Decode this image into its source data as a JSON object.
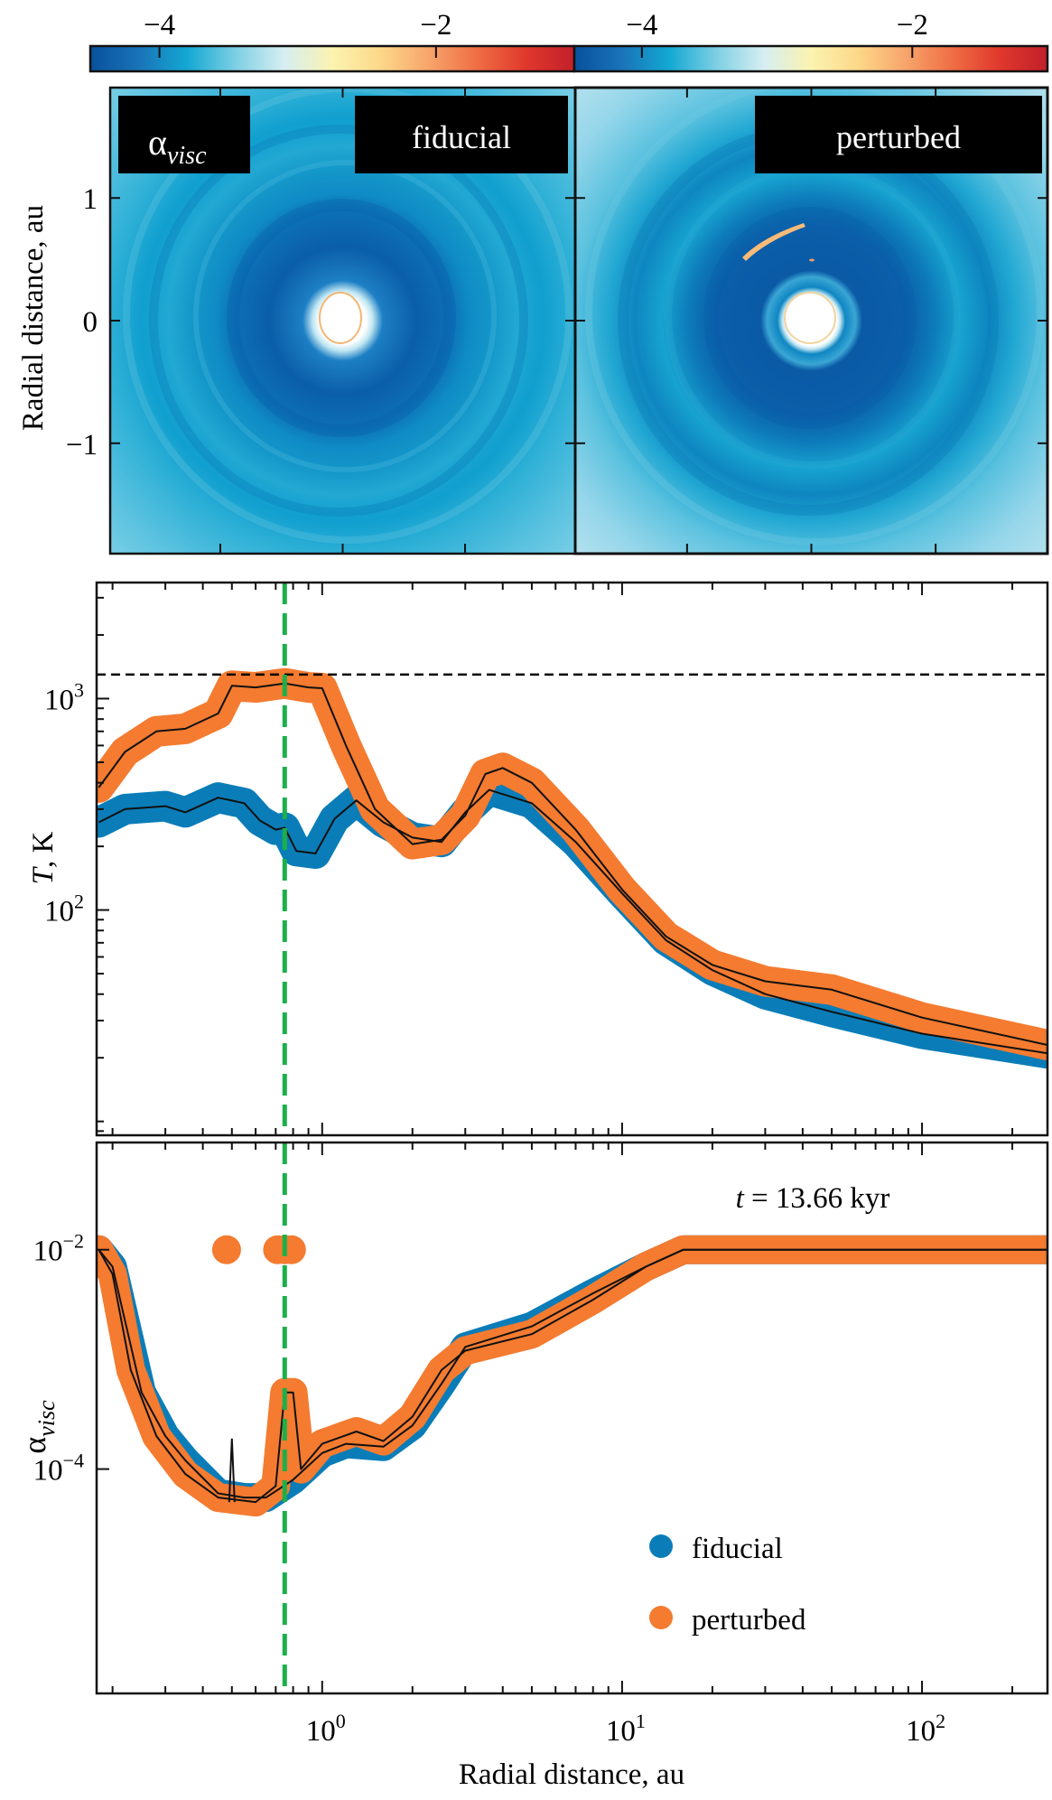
{
  "colorbars": [
    {
      "name": "left",
      "ticks": [
        {
          "value": -4,
          "label": "−4"
        },
        {
          "value": -2,
          "label": "−2"
        }
      ],
      "range": [
        -4.5,
        -1.0
      ]
    },
    {
      "name": "right",
      "ticks": [
        {
          "value": -4,
          "label": "−4"
        },
        {
          "value": -2,
          "label": "−2"
        }
      ],
      "range": [
        -4.5,
        -1.0
      ]
    }
  ],
  "colormap": [
    "#08519c",
    "#1a73b8",
    "#13a8d2",
    "#7dcfe3",
    "#d6eef2",
    "#fbf3b0",
    "#fdd889",
    "#f7a46b",
    "#ef6d44",
    "#e0382c",
    "#c2202a"
  ],
  "maps": {
    "ylabel": "Radial distance, au",
    "yticks": [
      {
        "value": 1,
        "label": "1"
      },
      {
        "value": 0,
        "label": "0"
      },
      {
        "value": -1,
        "label": "−1"
      }
    ],
    "range": [
      -1.9,
      1.9
    ],
    "quantity_label": "α",
    "quantity_sub": "visc",
    "panels": [
      {
        "label": "fiducial"
      },
      {
        "label": "perturbed"
      }
    ]
  },
  "chart_data": [
    {
      "type": "line",
      "panel": "temperature",
      "xlabel": "Radial distance, au",
      "ylabel_italic": "T",
      "ylabel_rest": ", K",
      "xscale": "log",
      "yscale": "log",
      "xlim": [
        0.177,
        262
      ],
      "ylim": [
        8.6,
        3540
      ],
      "yticks": [
        {
          "value": 100,
          "base": "10",
          "exp": "2"
        },
        {
          "value": 1000,
          "base": "10",
          "exp": "3"
        }
      ],
      "hline": {
        "value": 1300,
        "style": "dashed",
        "color": "#000000"
      },
      "vline": {
        "value": 0.75,
        "style": "dashed",
        "color": "#1ab04a"
      },
      "series": [
        {
          "name": "fiducial",
          "color": "#0a7db8",
          "x": [
            0.18,
            0.22,
            0.3,
            0.35,
            0.45,
            0.55,
            0.62,
            0.7,
            0.75,
            0.82,
            0.95,
            1.1,
            1.3,
            1.6,
            2.0,
            2.5,
            3.0,
            3.6,
            5,
            7,
            10,
            14,
            20,
            30,
            50,
            100,
            262
          ],
          "y": [
            260,
            300,
            310,
            290,
            340,
            320,
            265,
            240,
            245,
            190,
            185,
            270,
            330,
            260,
            220,
            210,
            290,
            370,
            320,
            210,
            120,
            72,
            52,
            40,
            33,
            26,
            21
          ]
        },
        {
          "name": "perturbed",
          "color": "#f47b30",
          "x": [
            0.18,
            0.22,
            0.28,
            0.35,
            0.45,
            0.5,
            0.6,
            0.75,
            0.9,
            1.0,
            1.2,
            1.5,
            2.0,
            2.5,
            3.0,
            3.5,
            4.0,
            5.0,
            7,
            10,
            14,
            20,
            30,
            50,
            100,
            262
          ],
          "y": [
            380,
            560,
            700,
            720,
            850,
            1150,
            1130,
            1180,
            1130,
            1120,
            600,
            300,
            205,
            215,
            280,
            440,
            470,
            400,
            240,
            125,
            75,
            55,
            46,
            42,
            31,
            23
          ]
        }
      ]
    },
    {
      "type": "line",
      "panel": "alpha",
      "xlabel": "Radial distance, au",
      "ylabel": "α",
      "ylabel_sub": "visc",
      "xscale": "log",
      "yscale": "log",
      "xlim": [
        0.177,
        262
      ],
      "ylim": [
        9e-07,
        0.095
      ],
      "xticks": [
        {
          "value": 1,
          "base": "10",
          "exp": "0"
        },
        {
          "value": 10,
          "base": "10",
          "exp": "1"
        },
        {
          "value": 100,
          "base": "10",
          "exp": "2"
        }
      ],
      "yticks": [
        {
          "value": 0.01,
          "base": "10",
          "exp": "−2"
        },
        {
          "value": 0.0001,
          "base": "10",
          "exp": "−4"
        }
      ],
      "vline": {
        "value": 0.75,
        "style": "dashed",
        "color": "#1ab04a"
      },
      "annotation": {
        "italic": "t",
        "rest": " = 13.66 kyr"
      },
      "legend": {
        "position": "lower-right",
        "entries": [
          {
            "label": "fiducial",
            "color": "#0a7db8"
          },
          {
            "label": "perturbed",
            "color": "#f47b30"
          }
        ]
      },
      "series": [
        {
          "name": "fiducial",
          "color": "#0a7db8",
          "x": [
            0.18,
            0.2,
            0.25,
            0.3,
            0.35,
            0.45,
            0.55,
            0.65,
            0.8,
            1.0,
            1.2,
            1.6,
            2.0,
            2.5,
            3.0,
            5,
            8,
            12,
            16,
            262
          ],
          "y": [
            0.01,
            0.007,
            0.0005,
            0.0002,
            0.00012,
            6e-05,
            5.5e-05,
            5.5e-05,
            8e-05,
            0.00014,
            0.00017,
            0.00016,
            0.00025,
            0.0006,
            0.0013,
            0.002,
            0.004,
            0.007,
            0.01,
            0.01
          ]
        },
        {
          "name": "perturbed",
          "color": "#f47b30",
          "x": [
            0.18,
            0.2,
            0.23,
            0.28,
            0.35,
            0.45,
            0.6,
            0.7,
            0.75,
            0.8,
            0.85,
            1.0,
            1.3,
            1.6,
            2.0,
            2.5,
            3.0,
            5,
            8,
            12,
            16,
            262
          ],
          "y": [
            0.01,
            0.006,
            0.0008,
            0.0002,
            9e-05,
            5.5e-05,
            5e-05,
            7e-05,
            0.0005,
            0.0005,
            0.0001,
            0.00017,
            0.00022,
            0.00018,
            0.0003,
            0.0008,
            0.0012,
            0.0017,
            0.0035,
            0.007,
            0.01,
            0.01
          ]
        }
      ],
      "outliers": {
        "series": "perturbed",
        "points": [
          {
            "x": 0.48,
            "y": 0.01
          },
          {
            "x": 0.71,
            "y": 0.01
          },
          {
            "x": 0.75,
            "y": 0.01
          },
          {
            "x": 0.79,
            "y": 0.01
          }
        ]
      },
      "spike": {
        "x": 0.5,
        "y": 0.00019
      }
    }
  ]
}
